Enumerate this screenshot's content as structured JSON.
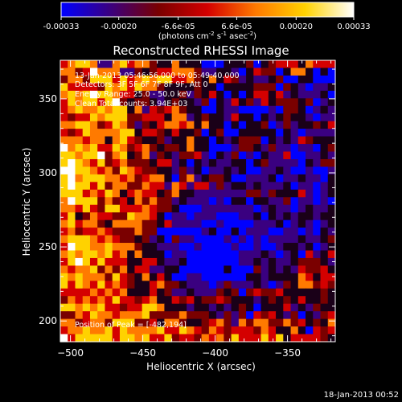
{
  "colorbar": {
    "ticks": [
      "-0.00033",
      "-0.00020",
      "-6.6e-05",
      "6.6e-05",
      "0.00020",
      "0.00033"
    ],
    "tick_values": [
      -0.00033,
      -0.0002,
      -6.6e-05,
      6.6e-05,
      0.0002,
      0.00033
    ],
    "range": [
      -0.00033,
      0.00033
    ],
    "unit_base": "(photons cm",
    "unit_sup1": "-2",
    "unit_mid1": " s",
    "unit_sup2": "-1",
    "unit_mid2": " asec",
    "unit_sup3": "-2",
    "unit_end": ")",
    "colors": [
      "#0000ff",
      "#3a0080",
      "#7a0000",
      "#d40000",
      "#ff7a00",
      "#ffd200",
      "#ffffff"
    ]
  },
  "annotations": {
    "line1": "13-Jan-2013 05:46:56.000 to 05:49:40.000",
    "line2": "Detectors: 3F 5F 6F 7F 8F 9F, Att 0",
    "line3": "Energy Range: 25.0 - 50.0 keV",
    "line4": "Clean    Total counts: 3.94E+03",
    "peak": "Position of Peak = [-482,194]"
  },
  "timestamp": "18-Jan-2013 00:52",
  "chart_data": {
    "type": "heatmap",
    "title": "Reconstructed RHESSI Image",
    "xlabel": "Heliocentric X (arcsec)",
    "ylabel": "Heliocentric Y (arcsec)",
    "xlim": [
      -507,
      -317
    ],
    "ylim": [
      186,
      376
    ],
    "x_ticks": [
      -500,
      -450,
      -400,
      -350
    ],
    "y_ticks": [
      200,
      250,
      300,
      350
    ],
    "x_tick_labels": [
      "−500",
      "−450",
      "−400",
      "−350"
    ],
    "y_tick_labels": [
      "200",
      "250",
      "300",
      "350"
    ],
    "value_range": [
      -0.00033,
      0.00033
    ],
    "peak_position": [
      -482,
      194
    ],
    "grid": {
      "rows_top_to_bottom": [
        "4566511564553225222000222302344425444",
        "5534755511323445553112210243302552020",
        "3553666464565664453252431211230022000",
        "6444436564655322223220222233303210112",
        "5656766544231122313242020244241211120",
        "4656646732332123221302142314233323012",
        "4565565662514345322002110000103320121",
        "4344656663344425512322142202123221011",
        "5566534653132455452522020223013122324",
        "4346555566244324223023002222202101111",
        "5554552564322312252202123330212143222",
        "7565644653453233252200013321311011023",
        "6656673562351321334102130102114001121",
        "6765463453332441202121122023111102133",
        "7766545365433221312011212001121001001",
        "6756665545345520351233200111201121102",
        "6766463553354415414413122121112011012",
        "6664546524544235221111111331322241012",
        "5766635342535331211101022022113011010",
        "5546436644454332000111111101211012112",
        "4623544336554201101110001120212122122",
        "5645532555533241111001000011120121012",
        "4534454333533000000120020111001101021",
        "5666545433231203110000101010111121123",
        "4766556555322111001000010010012212012",
        "5656656452522201100000001112101204124",
        "4676464442244211200000001121211233321",
        "5455635352441122000000200031212143342",
        "6565553643252420011000000221222254244",
        "6465464543224533211101311121013255343",
        "4444545452224231121113230343342222232",
        "3545454644345224342334322212323242232",
        "6656564434466522212212123202224121322",
        "3354655455563333533321313043421302134",
        "5534553666334255322345315355335342325",
        "4556556465555644654354344435422520434",
        "7466666466564463443545364446462444432"
      ],
      "levels": [
        "#0000ff",
        "#3a0080",
        "#1a0018",
        "#7a0000",
        "#d40000",
        "#ff7a00",
        "#ffd200",
        "#ffffff"
      ]
    }
  }
}
